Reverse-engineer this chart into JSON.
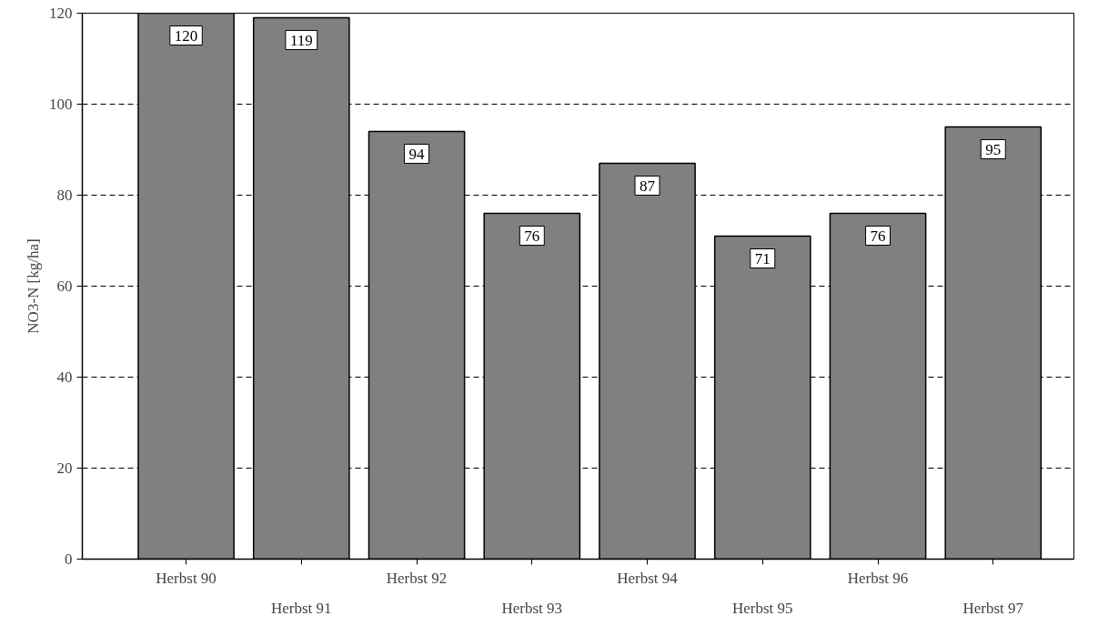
{
  "chart_data": {
    "type": "bar",
    "ylabel": "NO3-N [kg/ha]",
    "categories": [
      "Herbst 90",
      "Herbst 91",
      "Herbst 92",
      "Herbst 93",
      "Herbst 94",
      "Herbst 95",
      "Herbst 96",
      "Herbst 97"
    ],
    "values": [
      120,
      119,
      94,
      76,
      87,
      71,
      76,
      95
    ],
    "color": "#808080",
    "ylim": [
      0,
      120
    ],
    "yticks": [
      0,
      20,
      40,
      60,
      80,
      100,
      120
    ],
    "grid": "y",
    "data_labels": true
  }
}
